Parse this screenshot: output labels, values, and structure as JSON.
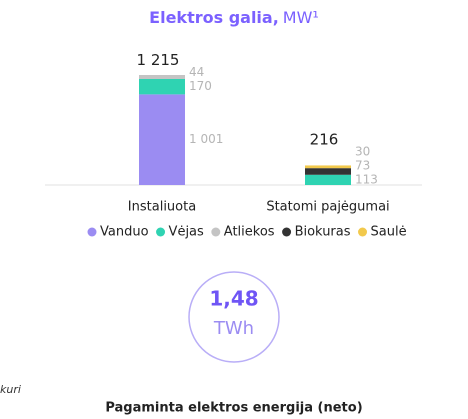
{
  "chart_data": {
    "type": "stacked_bar",
    "title": "Elektros galia,",
    "title_unit": "MW¹",
    "categories": [
      "Instaliuota",
      "Statomi pajėgumai"
    ],
    "total_labels": [
      "1 215",
      "216"
    ],
    "series": [
      {
        "name": "Vanduo",
        "color": "#9b8cf2",
        "values": [
          1001,
          0
        ],
        "value_labels": [
          "1 001",
          null
        ]
      },
      {
        "name": "Vėjas",
        "color": "#2fd3b2",
        "values": [
          170,
          113
        ],
        "value_labels": [
          "170",
          "113"
        ]
      },
      {
        "name": "Atliekos",
        "color": "#c4c4c4",
        "values": [
          44,
          0
        ],
        "value_labels": [
          "44",
          null
        ]
      },
      {
        "name": "Biokuras",
        "color": "#333333",
        "values": [
          0,
          73
        ],
        "value_labels": [
          null,
          "73"
        ]
      },
      {
        "name": "Saulė",
        "color": "#f2c94c",
        "values": [
          0,
          30
        ],
        "value_labels": [
          null,
          "30"
        ]
      }
    ],
    "ylim": [
      0,
      1215
    ]
  },
  "kpi": {
    "value": "1,48",
    "unit": "TWh",
    "label": "Pagaminta elektros energija (neto)"
  },
  "side_note": "kuri"
}
